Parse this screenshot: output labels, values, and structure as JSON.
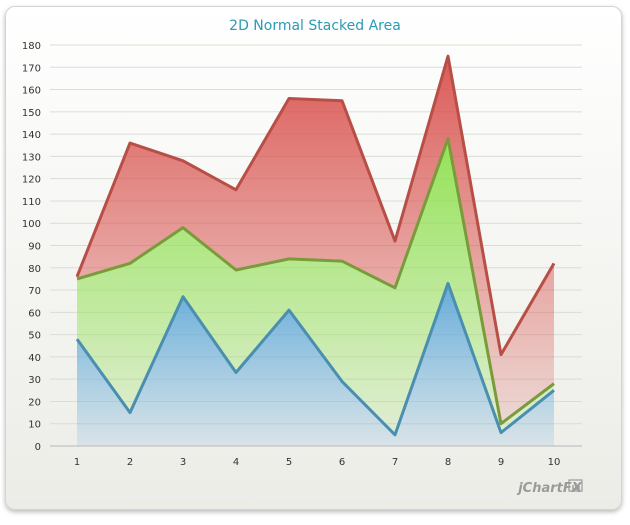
{
  "chart_data": {
    "type": "area",
    "stacked": true,
    "title": "2D Normal Stacked Area",
    "xlabel": "",
    "ylabel": "",
    "categories": [
      "1",
      "2",
      "3",
      "4",
      "5",
      "6",
      "7",
      "8",
      "9",
      "10"
    ],
    "ylim": [
      0,
      180
    ],
    "yticks": [
      0,
      10,
      20,
      30,
      40,
      50,
      60,
      70,
      80,
      90,
      100,
      110,
      120,
      130,
      140,
      150,
      160,
      170,
      180
    ],
    "grid": true,
    "legend": "none",
    "series": [
      {
        "values": [
          48,
          15,
          67,
          33,
          61,
          29,
          5,
          73,
          6,
          25
        ],
        "color": "#4a8fb0",
        "fill_top": "#5fa8d8"
      },
      {
        "values": [
          27,
          67,
          31,
          46,
          23,
          54,
          66,
          65,
          4,
          3
        ],
        "color": "#7a9b3a",
        "fill_top": "#8ee04e"
      },
      {
        "values": [
          1,
          54,
          30,
          36,
          72,
          72,
          21,
          37,
          31,
          54
        ],
        "color": "#b84f47",
        "fill_top": "#d9534f"
      }
    ]
  },
  "watermark": "jChartFX"
}
